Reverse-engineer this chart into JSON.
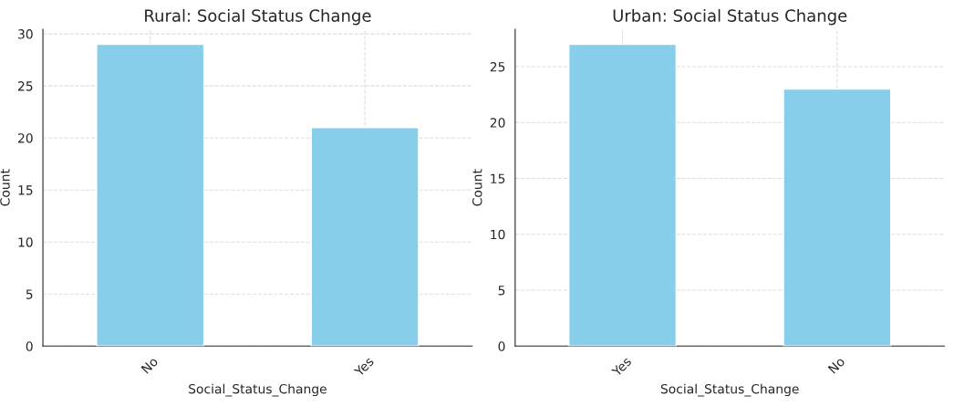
{
  "chart_data": [
    {
      "type": "bar",
      "title": "Rural: Social Status Change",
      "xlabel": "Social_Status_Change",
      "ylabel": "Count",
      "categories": [
        "No",
        "Yes"
      ],
      "values": [
        29,
        21
      ],
      "color": "#87ceeb",
      "ylim": [
        0,
        30.45
      ],
      "yticks": [
        0,
        5,
        10,
        15,
        20,
        25,
        30
      ],
      "grid": true
    },
    {
      "type": "bar",
      "title": "Urban: Social Status Change",
      "xlabel": "Social_Status_Change",
      "ylabel": "Count",
      "categories": [
        "Yes",
        "No"
      ],
      "values": [
        27,
        23
      ],
      "color": "#87ceeb",
      "ylim": [
        0,
        28.35
      ],
      "yticks": [
        0,
        5,
        10,
        15,
        20,
        25
      ],
      "grid": true
    }
  ]
}
